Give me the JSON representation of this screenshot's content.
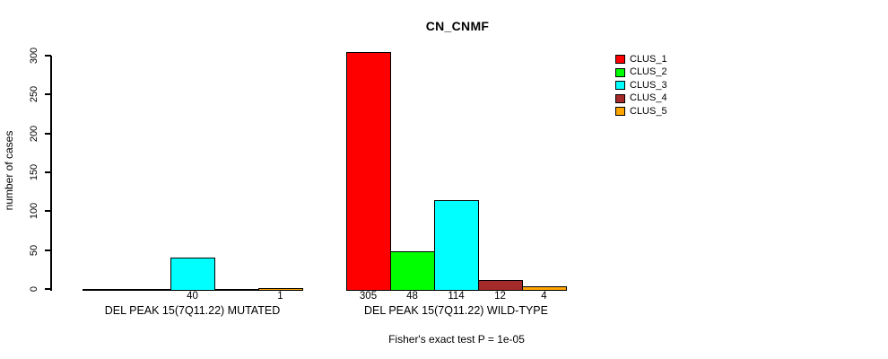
{
  "title": "CN_CNMF",
  "y_axis": {
    "label": "number of cases",
    "ticks": [
      0,
      50,
      100,
      150,
      200,
      250,
      300
    ]
  },
  "legend": {
    "items": [
      {
        "label": "CLUS_1",
        "color": "#FF0000"
      },
      {
        "label": "CLUS_2",
        "color": "#00FF00"
      },
      {
        "label": "CLUS_3",
        "color": "#00FFFF"
      },
      {
        "label": "CLUS_4",
        "color": "#A52A2A"
      },
      {
        "label": "CLUS_5",
        "color": "#FFA500"
      }
    ]
  },
  "footnote": "Fisher's exact test P = 1e-05",
  "chart_data": {
    "type": "bar",
    "title": "CN_CNMF",
    "xlabel": "",
    "ylabel": "number of cases",
    "ylim": [
      0,
      300
    ],
    "grid": false,
    "legend_position": "right",
    "clusters": [
      "CLUS_1",
      "CLUS_2",
      "CLUS_3",
      "CLUS_4",
      "CLUS_5"
    ],
    "cluster_colors": [
      "#FF0000",
      "#00FF00",
      "#00FFFF",
      "#A52A2A",
      "#FFA500"
    ],
    "groups": [
      {
        "label": "DEL PEAK 15(7Q11.22) MUTATED",
        "values": [
          0,
          0,
          40,
          0,
          1
        ],
        "bar_labels": [
          "",
          "",
          "40",
          "",
          "1"
        ]
      },
      {
        "label": "DEL PEAK 15(7Q11.22) WILD-TYPE",
        "values": [
          305,
          48,
          114,
          12,
          4
        ],
        "bar_labels": [
          "305",
          "48",
          "114",
          "12",
          "4"
        ]
      }
    ],
    "annotation": "Fisher's exact test P = 1e-05"
  }
}
